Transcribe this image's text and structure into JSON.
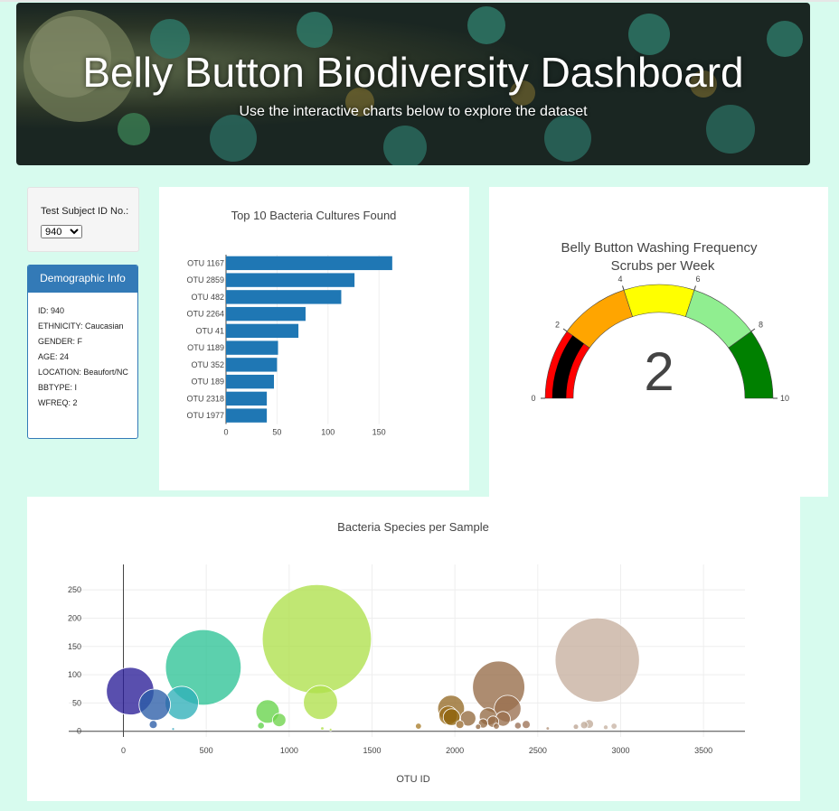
{
  "header": {
    "title": "Belly Button Biodiversity Dashboard",
    "subtitle": "Use the interactive charts below to explore the dataset"
  },
  "selector": {
    "label": "Test Subject ID No.:",
    "value": "940"
  },
  "demographics": {
    "title": "Demographic Info",
    "rows": [
      "ID: 940",
      "ETHNICITY: Caucasian",
      "GENDER: F",
      "AGE: 24",
      "LOCATION: Beaufort/NC",
      "BBTYPE: I",
      "WFREQ: 2"
    ]
  },
  "colors": {
    "bar": "#1f77b4",
    "panel_accent": "#337ab7",
    "page_bg": "#d7fbee"
  },
  "chart_data": [
    {
      "type": "bar",
      "orientation": "horizontal",
      "title": "Top 10 Bacteria Cultures Found",
      "categories": [
        "OTU 1167",
        "OTU 2859",
        "OTU 482",
        "OTU 2264",
        "OTU 41",
        "OTU 1189",
        "OTU 352",
        "OTU 189",
        "OTU 2318",
        "OTU 1977"
      ],
      "values": [
        163,
        126,
        113,
        78,
        71,
        51,
        50,
        47,
        40,
        40
      ],
      "xticks": [
        0,
        50,
        100,
        150
      ],
      "xlim": [
        0,
        172
      ]
    },
    {
      "type": "gauge",
      "title": "Belly Button Washing Frequency",
      "subtitle": "Scrubs per Week",
      "value": 2,
      "range": [
        0,
        10
      ],
      "ticks": [
        0,
        2,
        4,
        6,
        8,
        10
      ],
      "bands": [
        {
          "from": 0,
          "to": 2,
          "color": "#ff0000"
        },
        {
          "from": 2,
          "to": 4,
          "color": "#ffa500"
        },
        {
          "from": 4,
          "to": 6,
          "color": "#ffff00"
        },
        {
          "from": 6,
          "to": 8,
          "color": "#90ee90"
        },
        {
          "from": 8,
          "to": 10,
          "color": "#008000"
        }
      ],
      "bar_color": "#000000"
    },
    {
      "type": "scatter",
      "subtype": "bubble",
      "title": "Bacteria Species per Sample",
      "xlabel": "OTU ID",
      "xlim": [
        -330,
        3750
      ],
      "ylim": [
        -10,
        295
      ],
      "xticks": [
        0,
        500,
        1000,
        1500,
        2000,
        2500,
        3000,
        3500
      ],
      "yticks": [
        0,
        50,
        100,
        150,
        200,
        250
      ],
      "points": [
        {
          "x": 41,
          "y": 71,
          "color": "#2a1e97"
        },
        {
          "x": 189,
          "y": 47,
          "color": "#2c5ea8"
        },
        {
          "x": 352,
          "y": 50,
          "color": "#2fb0b8"
        },
        {
          "x": 482,
          "y": 113,
          "color": "#2ec396"
        },
        {
          "x": 180,
          "y": 12,
          "color": "#2c5ea8"
        },
        {
          "x": 300,
          "y": 4,
          "color": "#2fa0b8"
        },
        {
          "x": 830,
          "y": 10,
          "color": "#5fd24a"
        },
        {
          "x": 870,
          "y": 35,
          "color": "#67d34a"
        },
        {
          "x": 940,
          "y": 20,
          "color": "#6ed34a"
        },
        {
          "x": 1167,
          "y": 163,
          "color": "#aee04b"
        },
        {
          "x": 1189,
          "y": 51,
          "color": "#b0e04b"
        },
        {
          "x": 1200,
          "y": 5,
          "color": "#b0e04b"
        },
        {
          "x": 1250,
          "y": 3,
          "color": "#b5e04b"
        },
        {
          "x": 1780,
          "y": 9,
          "color": "#a87c2a"
        },
        {
          "x": 1960,
          "y": 28,
          "color": "#9a6b16"
        },
        {
          "x": 1977,
          "y": 40,
          "color": "#956a26"
        },
        {
          "x": 1980,
          "y": 25,
          "color": "#8f6510"
        },
        {
          "x": 2030,
          "y": 12,
          "color": "#9a6b30"
        },
        {
          "x": 2080,
          "y": 23,
          "color": "#946a3e"
        },
        {
          "x": 2140,
          "y": 8,
          "color": "#946a42"
        },
        {
          "x": 2170,
          "y": 14,
          "color": "#946a42"
        },
        {
          "x": 2200,
          "y": 26,
          "color": "#946a44"
        },
        {
          "x": 2230,
          "y": 17,
          "color": "#966c46"
        },
        {
          "x": 2250,
          "y": 9,
          "color": "#966c48"
        },
        {
          "x": 2264,
          "y": 78,
          "color": "#966c48"
        },
        {
          "x": 2290,
          "y": 22,
          "color": "#986e4c"
        },
        {
          "x": 2318,
          "y": 40,
          "color": "#9a7050"
        },
        {
          "x": 2380,
          "y": 10,
          "color": "#9a7054"
        },
        {
          "x": 2430,
          "y": 12,
          "color": "#9c7256"
        },
        {
          "x": 2560,
          "y": 5,
          "color": "#b2947c"
        },
        {
          "x": 2730,
          "y": 8,
          "color": "#bca492"
        },
        {
          "x": 2780,
          "y": 11,
          "color": "#c0aa98"
        },
        {
          "x": 2810,
          "y": 13,
          "color": "#c0aa98"
        },
        {
          "x": 2859,
          "y": 126,
          "color": "#c6b09f"
        },
        {
          "x": 2910,
          "y": 7,
          "color": "#c6b2a2"
        },
        {
          "x": 2960,
          "y": 9,
          "color": "#c8b4a4"
        }
      ]
    }
  ]
}
